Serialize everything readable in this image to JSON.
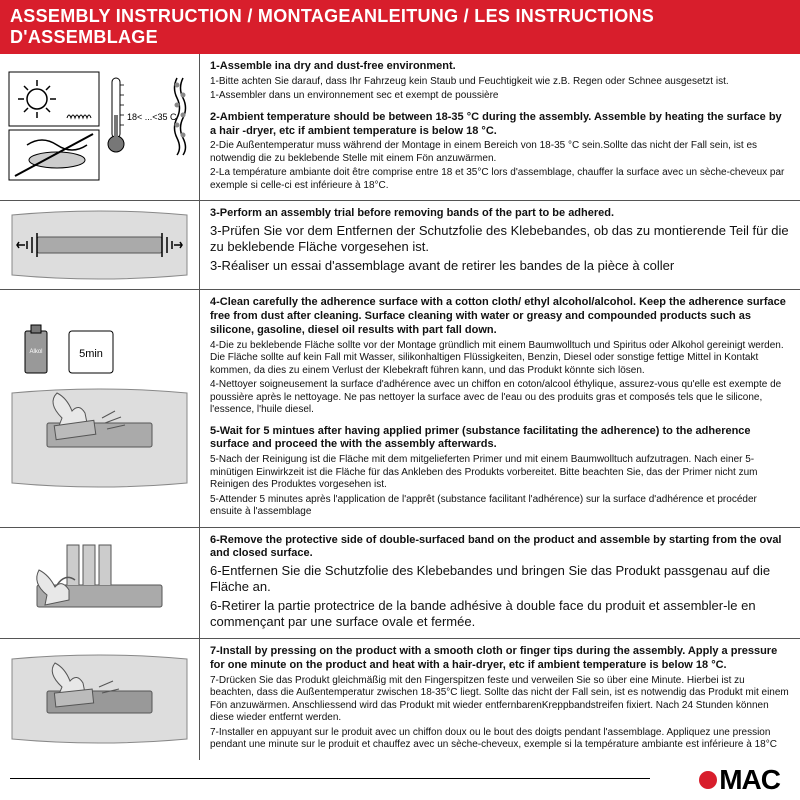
{
  "header": "ASSEMBLY INSTRUCTION / MONTAGEANLEITUNG / LES INSTRUCTIONS D'ASSEMBLAGE",
  "colors": {
    "accent": "#d81e2c",
    "text": "#111111",
    "border": "#555555",
    "background": "#ffffff"
  },
  "typography": {
    "header_fontsize": 18,
    "bold_fontsize": 11,
    "body_fontsize": 10,
    "logo_fontsize": 28
  },
  "logo": {
    "text": "MAC",
    "dot_color": "#d81e2c"
  },
  "steps": [
    {
      "icon": "sun-temp",
      "lines": [
        {
          "bold": true,
          "text": "1-Assemble ina dry and dust-free environment."
        },
        {
          "bold": false,
          "text": "1-Bitte achten Sie darauf, dass Ihr Fahrzeug kein Staub und Feuchtigkeit wie z.B. Regen oder Schnee ausgesetzt ist."
        },
        {
          "bold": false,
          "text": "1-Assembler dans un environnement sec et exempt de poussière"
        },
        {
          "bold": true,
          "text": "2-Ambient temperature should be between 18-35 °C  during the assembly. Assemble by heating the surface by a hair -dryer, etc if ambient temperature is below 18 °C."
        },
        {
          "bold": false,
          "text": "2-Die Außentemperatur muss während der Montage in einem Bereich von 18-35 °C  sein.Sollte das nicht der Fall sein, ist es notwendig die zu beklebende Stelle mit einem Fön anzuwärmen."
        },
        {
          "bold": false,
          "text": "2-La température ambiante doit être comprise entre 18 et 35°C lors d'assemblage, chauffer la surface avec un sèche-cheveux par exemple si celle-ci est inférieure à 18°C."
        }
      ]
    },
    {
      "icon": "trial",
      "lines": [
        {
          "bold": true,
          "text": "3-Perform an assembly trial before removing bands of the part to be adhered."
        },
        {
          "bold": false,
          "text": "3-Prüfen Sie vor dem Entfernen der Schutzfolie des Klebebandes, ob das zu montierende Teil für die zu beklebende Fläche vorgesehen ist."
        },
        {
          "bold": false,
          "text": "3-Réaliser un essai d'assemblage avant de retirer les bandes de la pièce à coller"
        }
      ],
      "large": true
    },
    {
      "icon": "clean-wait",
      "lines": [
        {
          "bold": true,
          "text": "4-Clean carefully the adherence surface with a cotton cloth/ ethyl alcohol/alcohol. Keep the adherence surface free from dust after cleaning. Surface cleaning with water or greasy and compounded products such as silicone, gasoline, diesel oil results with part fall down."
        },
        {
          "bold": false,
          "text": "4-Die zu beklebende Fläche sollte vor der Montage gründlich mit einem Baumwolltuch und Spiritus oder Alkohol gereinigt werden. Die Fläche sollte auf kein Fall mit Wasser, silikonhaltigen Flüssigkeiten, Benzin, Diesel oder sonstige fettige Mittel in Kontakt kommen, da dies zu einem Verlust der Klebekraft führen kann, und das Produkt könnte sich lösen."
        },
        {
          "bold": false,
          "text": "4-Nettoyer soigneusement la surface d'adhérence avec un chiffon en coton/alcool éthylique, assurez-vous qu'elle est exempte de poussière après le nettoyage. Ne pas nettoyer la surface avec de l'eau ou des produits gras et composés tels que le silicone, l'essence, l'huile diesel."
        },
        {
          "bold": true,
          "text": "5-Wait for 5 mintues after having applied primer (substance facilitating the adherence) to the adherence surface and proceed the with the assembly afterwards."
        },
        {
          "bold": false,
          "text": "5-Nach der Reinigung ist die Fläche mit dem mitgelieferten Primer und mit einem Baumwolltuch aufzutragen. Nach einer 5-minütigen Einwirkzeit ist die Fläche für das Ankleben des Produkts vorbereitet. Bitte beachten Sie, das der Primer nicht zum Reinigen des Produktes vorgesehen ist."
        },
        {
          "bold": false,
          "text": "5-Attender 5 minutes après l'application de l'apprêt (substance facilitant l'adhérence) sur la surface d'adhérence et procéder ensuite à l'assemblage"
        }
      ]
    },
    {
      "icon": "peel",
      "lines": [
        {
          "bold": true,
          "text": "6-Remove the protective side of double-surfaced band on the product and assemble by starting from the oval and closed surface."
        },
        {
          "bold": false,
          "text": "6-Entfernen Sie die Schutzfolie des Klebebandes und bringen Sie das Produkt passgenau auf die Fläche an."
        },
        {
          "bold": false,
          "text": "6-Retirer la partie protectrice de la bande adhésive à double face du produit et assembler-le en commençant par une surface ovale et fermée."
        }
      ],
      "large": true
    },
    {
      "icon": "press",
      "lines": [
        {
          "bold": true,
          "text": "7-Install by pressing on the product with a smooth cloth or finger tips during the assembly. Apply a pressure for one minute on the product and heat with a hair-dryer, etc if ambient temperature is below 18 °C."
        },
        {
          "bold": false,
          "text": "7-Drücken Sie das Produkt gleichmäßig mit den Fingerspitzen feste und verweilen Sie so über eine Minute. Hierbei ist zu beachten, dass die Außentemperatur zwischen 18-35°C liegt. Sollte das nicht der Fall sein, ist es notwendig das Produkt mit einem Fön anzuwärmen. Anschliessend wird das Produkt mit wieder entfernbarenKreppbandstreifen fixiert. Nach 24 Stunden können diese wieder entfernt werden."
        },
        {
          "bold": false,
          "text": "7-Installer en appuyant sur le produit avec un chiffon doux ou le bout des doigts pendant l'assemblage. Appliquez une pression pendant une minute sur le produit et chauffez avec un sèche-cheveux, exemple si la température ambiante est inférieure à 18°C"
        }
      ]
    }
  ]
}
